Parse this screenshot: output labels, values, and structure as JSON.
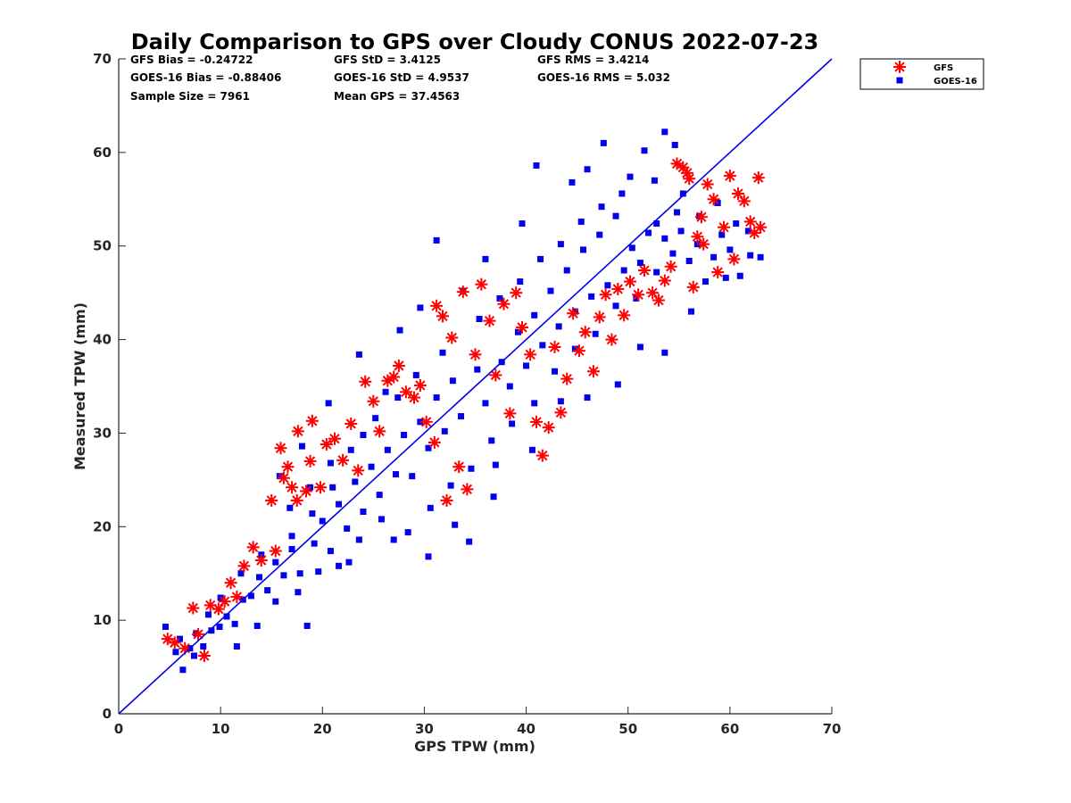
{
  "chart_data": {
    "type": "scatter",
    "title": "Daily Comparison to GPS over Cloudy CONUS 2022-07-23",
    "xlabel": "GPS TPW (mm)",
    "ylabel": "Measured TPW (mm)",
    "xlim": [
      0,
      70
    ],
    "ylim": [
      0,
      70
    ],
    "xticks": [
      "0",
      "10",
      "20",
      "30",
      "40",
      "50",
      "60",
      "70"
    ],
    "yticks": [
      "0",
      "10",
      "20",
      "30",
      "40",
      "50",
      "60",
      "70"
    ],
    "grid": false,
    "legend_position": "outside-top-right",
    "reference_line": {
      "x": [
        0,
        70
      ],
      "y": [
        0,
        70
      ],
      "color": "#0000ee"
    },
    "stats": [
      [
        "GFS Bias = -0.24722",
        "GFS StD = 3.4125",
        "GFS RMS = 3.4214"
      ],
      [
        "GOES-16 Bias = -0.88406",
        "GOES-16 StD = 4.9537",
        "GOES-16 RMS = 5.032"
      ],
      [
        "Sample Size = 7961",
        "Mean GPS = 37.4563"
      ]
    ],
    "series": [
      {
        "name": "GFS",
        "marker": "asterisk",
        "color": "#ff0000",
        "points": [
          [
            4.8,
            8.0
          ],
          [
            5.5,
            7.6
          ],
          [
            6.5,
            7.0
          ],
          [
            7.3,
            11.3
          ],
          [
            7.8,
            8.5
          ],
          [
            8.4,
            6.2
          ],
          [
            9.0,
            11.6
          ],
          [
            9.8,
            11.2
          ],
          [
            10.4,
            12.0
          ],
          [
            11.0,
            14.0
          ],
          [
            11.6,
            12.5
          ],
          [
            12.3,
            15.8
          ],
          [
            13.2,
            17.8
          ],
          [
            14.0,
            16.4
          ],
          [
            15.0,
            22.8
          ],
          [
            15.4,
            17.4
          ],
          [
            15.9,
            28.4
          ],
          [
            16.2,
            25.2
          ],
          [
            16.6,
            26.4
          ],
          [
            17.0,
            24.2
          ],
          [
            17.5,
            22.8
          ],
          [
            17.6,
            30.2
          ],
          [
            18.4,
            23.8
          ],
          [
            18.8,
            27.0
          ],
          [
            19.0,
            31.3
          ],
          [
            19.8,
            24.2
          ],
          [
            20.4,
            28.8
          ],
          [
            21.2,
            29.4
          ],
          [
            22.0,
            27.1
          ],
          [
            22.8,
            31.0
          ],
          [
            23.5,
            26.0
          ],
          [
            24.2,
            35.5
          ],
          [
            25.0,
            33.4
          ],
          [
            25.6,
            30.2
          ],
          [
            26.4,
            35.6
          ],
          [
            27.0,
            36.0
          ],
          [
            27.5,
            37.2
          ],
          [
            28.2,
            34.4
          ],
          [
            29.0,
            33.8
          ],
          [
            29.6,
            35.1
          ],
          [
            30.2,
            31.2
          ],
          [
            31.0,
            29.0
          ],
          [
            31.2,
            43.6
          ],
          [
            31.8,
            42.5
          ],
          [
            32.2,
            22.8
          ],
          [
            32.7,
            40.2
          ],
          [
            33.4,
            26.4
          ],
          [
            33.8,
            45.1
          ],
          [
            34.2,
            24.0
          ],
          [
            35.0,
            38.4
          ],
          [
            35.6,
            45.9
          ],
          [
            36.4,
            42.0
          ],
          [
            37.0,
            36.2
          ],
          [
            37.8,
            43.8
          ],
          [
            38.4,
            32.1
          ],
          [
            39.0,
            45.0
          ],
          [
            39.6,
            41.3
          ],
          [
            40.4,
            38.4
          ],
          [
            41.0,
            31.2
          ],
          [
            41.6,
            27.6
          ],
          [
            42.2,
            30.6
          ],
          [
            42.8,
            39.2
          ],
          [
            43.4,
            32.2
          ],
          [
            44.0,
            35.8
          ],
          [
            44.6,
            42.8
          ],
          [
            45.2,
            38.8
          ],
          [
            45.8,
            40.8
          ],
          [
            46.6,
            36.6
          ],
          [
            47.2,
            42.4
          ],
          [
            47.8,
            44.8
          ],
          [
            48.4,
            40.0
          ],
          [
            49.0,
            45.4
          ],
          [
            49.6,
            42.6
          ],
          [
            50.2,
            46.2
          ],
          [
            51.0,
            44.8
          ],
          [
            51.6,
            47.4
          ],
          [
            52.4,
            45.0
          ],
          [
            53.0,
            44.2
          ],
          [
            53.6,
            46.3
          ],
          [
            54.2,
            47.8
          ],
          [
            54.8,
            58.8
          ],
          [
            55.4,
            58.4
          ],
          [
            56.0,
            57.2
          ],
          [
            56.4,
            45.6
          ],
          [
            56.8,
            51.0
          ],
          [
            57.2,
            53.1
          ],
          [
            57.8,
            56.6
          ],
          [
            58.4,
            55.0
          ],
          [
            58.8,
            47.2
          ],
          [
            59.4,
            52.0
          ],
          [
            60.0,
            57.5
          ],
          [
            60.4,
            48.6
          ],
          [
            60.8,
            55.6
          ],
          [
            61.4,
            54.8
          ],
          [
            62.0,
            52.6
          ],
          [
            62.4,
            51.4
          ],
          [
            62.8,
            57.3
          ],
          [
            63.0,
            52.0
          ],
          [
            55.8,
            57.8
          ],
          [
            57.4,
            50.2
          ]
        ]
      },
      {
        "name": "GOES-16",
        "marker": "square",
        "color": "#0000ee",
        "points": [
          [
            4.6,
            9.3
          ],
          [
            5.6,
            6.6
          ],
          [
            6.3,
            4.7
          ],
          [
            7.0,
            7.0
          ],
          [
            7.6,
            8.6
          ],
          [
            8.3,
            7.2
          ],
          [
            9.1,
            8.9
          ],
          [
            9.9,
            9.3
          ],
          [
            10.6,
            10.4
          ],
          [
            11.4,
            9.6
          ],
          [
            12.2,
            12.2
          ],
          [
            13.0,
            12.6
          ],
          [
            13.8,
            14.6
          ],
          [
            14.6,
            13.2
          ],
          [
            15.4,
            16.2
          ],
          [
            16.2,
            14.8
          ],
          [
            17.0,
            17.6
          ],
          [
            17.8,
            15.0
          ],
          [
            18.5,
            9.4
          ],
          [
            19.2,
            18.2
          ],
          [
            20.0,
            20.6
          ],
          [
            20.8,
            17.4
          ],
          [
            21.6,
            22.4
          ],
          [
            22.4,
            19.8
          ],
          [
            23.2,
            24.8
          ],
          [
            24.0,
            21.6
          ],
          [
            24.8,
            26.4
          ],
          [
            25.6,
            23.4
          ],
          [
            26.4,
            28.2
          ],
          [
            27.2,
            25.6
          ],
          [
            28.0,
            29.8
          ],
          [
            28.8,
            25.4
          ],
          [
            29.6,
            31.2
          ],
          [
            30.4,
            28.4
          ],
          [
            31.2,
            33.8
          ],
          [
            31.2,
            50.6
          ],
          [
            32.0,
            30.2
          ],
          [
            32.8,
            35.6
          ],
          [
            33.6,
            31.8
          ],
          [
            34.4,
            18.4
          ],
          [
            35.2,
            36.8
          ],
          [
            36.0,
            33.2
          ],
          [
            36.8,
            23.2
          ],
          [
            37.6,
            37.6
          ],
          [
            38.4,
            35.0
          ],
          [
            39.2,
            40.8
          ],
          [
            40.0,
            37.2
          ],
          [
            40.8,
            42.6
          ],
          [
            41.6,
            39.4
          ],
          [
            42.4,
            45.2
          ],
          [
            43.2,
            41.4
          ],
          [
            44.0,
            47.4
          ],
          [
            44.8,
            43.0
          ],
          [
            45.6,
            49.6
          ],
          [
            46.4,
            44.6
          ],
          [
            47.2,
            51.2
          ],
          [
            48.0,
            45.8
          ],
          [
            48.8,
            53.2
          ],
          [
            49.6,
            47.4
          ],
          [
            50.4,
            49.8
          ],
          [
            51.2,
            48.2
          ],
          [
            52.0,
            51.4
          ],
          [
            52.8,
            47.2
          ],
          [
            53.6,
            50.8
          ],
          [
            54.4,
            49.2
          ],
          [
            53.6,
            62.2
          ],
          [
            55.2,
            51.6
          ],
          [
            56.0,
            48.4
          ],
          [
            56.8,
            50.2
          ],
          [
            57.6,
            46.2
          ],
          [
            58.4,
            48.8
          ],
          [
            59.2,
            51.2
          ],
          [
            60.0,
            49.6
          ],
          [
            61.0,
            46.8
          ],
          [
            62.0,
            49.0
          ],
          [
            63.0,
            48.8
          ],
          [
            41.0,
            58.6
          ],
          [
            44.5,
            56.8
          ],
          [
            46.0,
            58.2
          ],
          [
            47.6,
            61.0
          ],
          [
            50.2,
            57.4
          ],
          [
            51.6,
            60.2
          ],
          [
            52.6,
            57.0
          ],
          [
            54.6,
            60.8
          ],
          [
            55.4,
            55.6
          ],
          [
            39.6,
            52.4
          ],
          [
            36.0,
            48.6
          ],
          [
            33.8,
            45.2
          ],
          [
            29.6,
            43.4
          ],
          [
            27.6,
            41.0
          ],
          [
            23.6,
            38.4
          ],
          [
            20.6,
            33.2
          ],
          [
            18.0,
            28.6
          ],
          [
            15.8,
            25.4
          ],
          [
            22.6,
            16.2
          ],
          [
            27.0,
            18.6
          ],
          [
            30.6,
            22.0
          ],
          [
            33.0,
            20.2
          ],
          [
            37.0,
            26.6
          ],
          [
            40.6,
            28.2
          ],
          [
            43.4,
            33.4
          ],
          [
            46.0,
            33.8
          ],
          [
            49.0,
            35.2
          ],
          [
            51.2,
            39.2
          ],
          [
            53.6,
            38.6
          ],
          [
            56.2,
            43.0
          ],
          [
            59.6,
            46.6
          ],
          [
            26.2,
            34.4
          ],
          [
            24.0,
            29.8
          ],
          [
            21.0,
            24.2
          ],
          [
            19.0,
            21.4
          ],
          [
            17.0,
            19.0
          ],
          [
            14.0,
            17.0
          ],
          [
            12.0,
            15.0
          ],
          [
            10.0,
            12.4
          ],
          [
            8.8,
            10.6
          ],
          [
            7.4,
            6.2
          ],
          [
            6.0,
            8.0
          ],
          [
            11.6,
            7.2
          ],
          [
            13.6,
            9.4
          ],
          [
            15.4,
            12.0
          ],
          [
            17.6,
            13.0
          ],
          [
            19.6,
            15.2
          ],
          [
            21.6,
            15.8
          ],
          [
            23.6,
            18.6
          ],
          [
            25.8,
            20.8
          ],
          [
            28.4,
            19.4
          ],
          [
            30.4,
            16.8
          ],
          [
            32.6,
            24.4
          ],
          [
            34.6,
            26.2
          ],
          [
            36.6,
            29.2
          ],
          [
            38.6,
            31.0
          ],
          [
            40.8,
            33.2
          ],
          [
            42.8,
            36.6
          ],
          [
            44.8,
            39.0
          ],
          [
            46.8,
            40.6
          ],
          [
            48.8,
            43.6
          ],
          [
            50.8,
            44.4
          ],
          [
            52.8,
            52.4
          ],
          [
            54.8,
            53.6
          ],
          [
            57.0,
            53.2
          ],
          [
            58.8,
            54.6
          ],
          [
            60.6,
            52.4
          ],
          [
            61.8,
            51.6
          ],
          [
            35.4,
            42.2
          ],
          [
            37.4,
            44.4
          ],
          [
            39.4,
            46.2
          ],
          [
            41.4,
            48.6
          ],
          [
            43.4,
            50.2
          ],
          [
            45.4,
            52.6
          ],
          [
            47.4,
            54.2
          ],
          [
            49.4,
            55.6
          ],
          [
            31.8,
            38.6
          ],
          [
            29.2,
            36.2
          ],
          [
            27.4,
            33.8
          ],
          [
            25.2,
            31.6
          ],
          [
            22.8,
            28.2
          ],
          [
            20.8,
            26.8
          ],
          [
            18.8,
            24.2
          ],
          [
            16.8,
            22.0
          ]
        ]
      }
    ]
  }
}
